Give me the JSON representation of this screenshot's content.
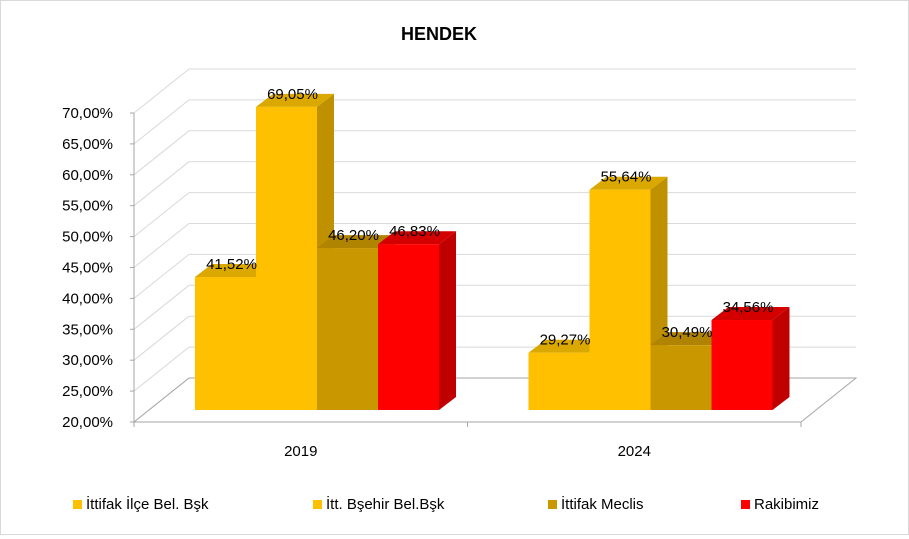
{
  "chart_data": {
    "type": "bar",
    "title": "HENDEK",
    "categories": [
      "2019",
      "2024"
    ],
    "series": [
      {
        "name": "İttifak İlçe Bel. Bşk",
        "values": [
          41.52,
          29.27
        ],
        "labels": [
          "41,52%",
          "29,27%"
        ],
        "color": "#FFC000",
        "side_color": "#BF9000",
        "top_color": "#DBA800"
      },
      {
        "name": "İtt. Bşehir Bel.Bşk",
        "values": [
          69.05,
          55.64
        ],
        "labels": [
          "69,05%",
          "55,64%"
        ],
        "color": "#FFC000",
        "side_color": "#BF9000",
        "top_color": "#DBA800"
      },
      {
        "name": "İttifak Meclis",
        "values": [
          46.2,
          30.49
        ],
        "labels": [
          "46,20%",
          "30,49%"
        ],
        "color": "#C99700",
        "side_color": "#9C7500",
        "top_color": "#B08300"
      },
      {
        "name": "Rakibimiz",
        "values": [
          46.83,
          34.56
        ],
        "labels": [
          "46,83%",
          "34,56%"
        ],
        "color": "#FF0000",
        "side_color": "#C00000",
        "top_color": "#D40000"
      }
    ],
    "ylim": [
      20,
      70
    ],
    "yticks": [
      20,
      25,
      30,
      35,
      40,
      45,
      50,
      55,
      60,
      65,
      70
    ],
    "ytick_labels": [
      "20,00%",
      "25,00%",
      "30,00%",
      "35,00%",
      "40,00%",
      "45,00%",
      "50,00%",
      "55,00%",
      "60,00%",
      "65,00%",
      "70,00%"
    ],
    "xlabel": "",
    "ylabel": "",
    "grid": true,
    "legend_position": "bottom",
    "gridline_color": "#D9D9D9",
    "axis_color": "#A6A6A6"
  }
}
